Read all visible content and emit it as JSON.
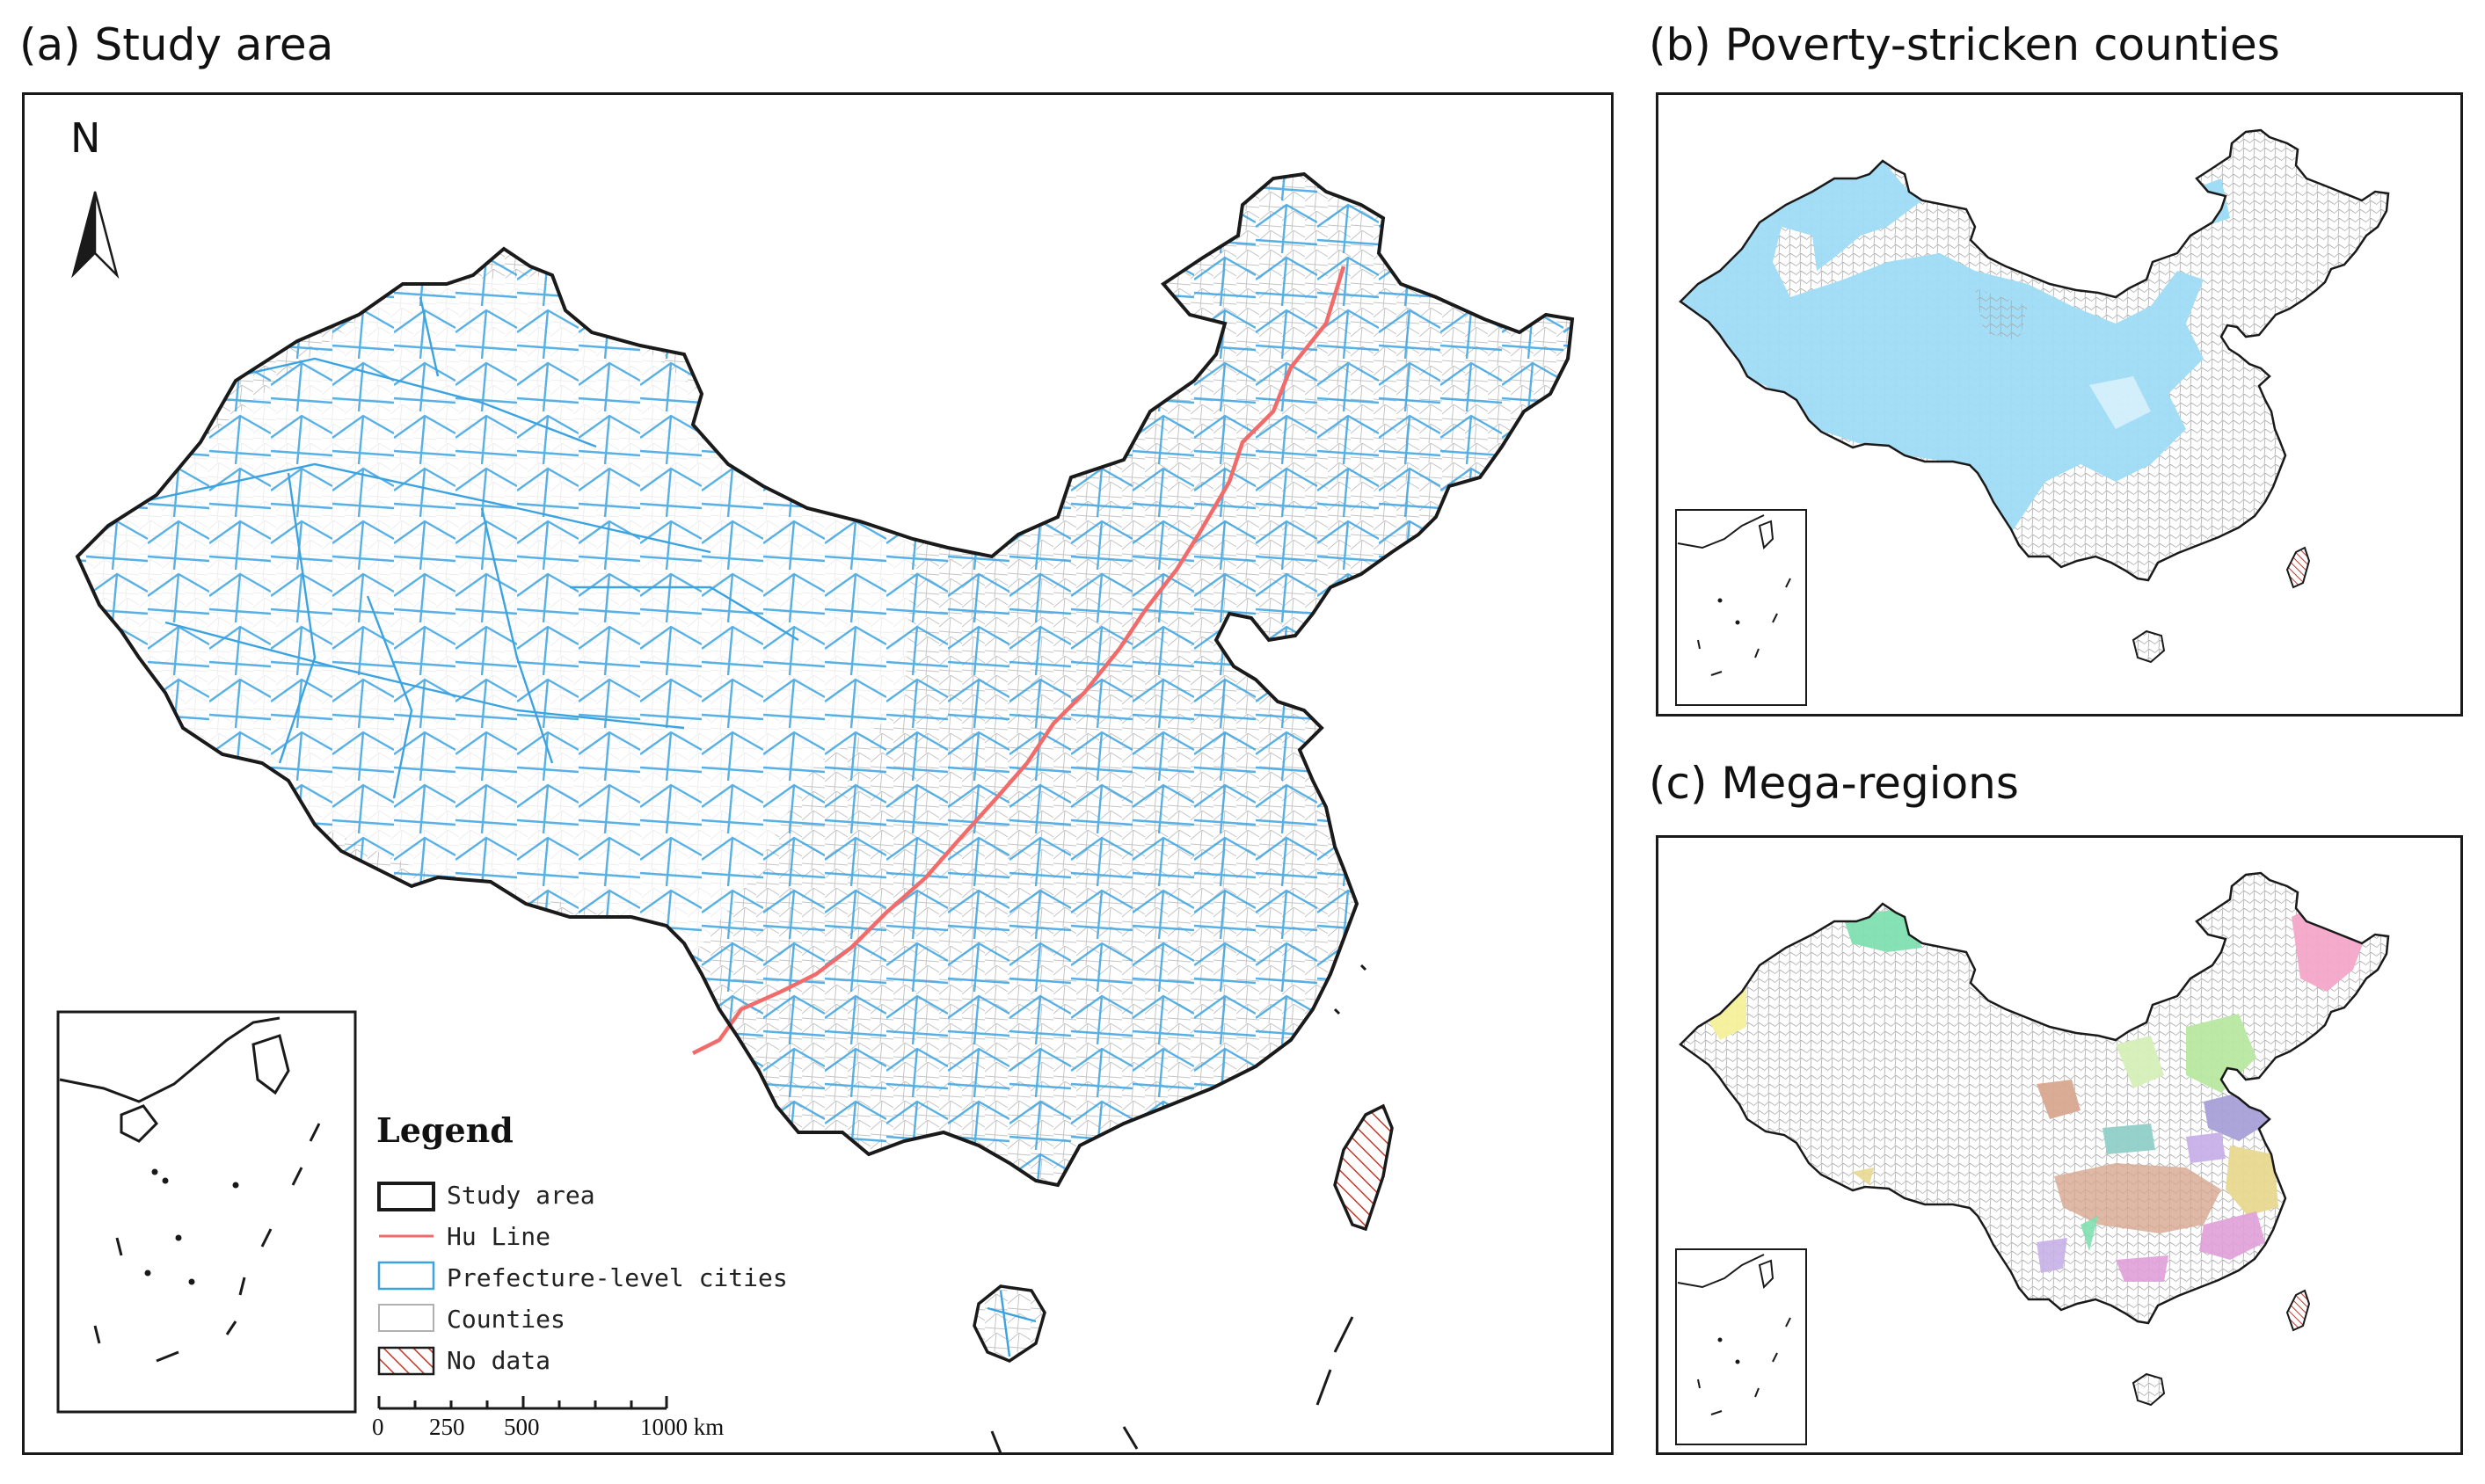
{
  "panels": {
    "a": {
      "title": "(a) Study area"
    },
    "b": {
      "title": "(b) Poverty-stricken counties"
    },
    "c": {
      "title": "(c) Mega-regions"
    }
  },
  "north_arrow": {
    "label": "N"
  },
  "legend": {
    "title": "Legend",
    "items": [
      {
        "label": "Study area",
        "symbol": "study-area-outline",
        "color": "#1a1a1a"
      },
      {
        "label": "Hu Line",
        "symbol": "line",
        "color": "#f26b6b"
      },
      {
        "label": "Prefecture-level cities",
        "symbol": "city-boundary",
        "color": "#3ba3e0"
      },
      {
        "label": "Counties",
        "symbol": "county-boundary",
        "color": "#b0b0b0"
      },
      {
        "label": "No data",
        "symbol": "hatch",
        "color": "#c0392b"
      }
    ]
  },
  "scale_bar": {
    "labels": [
      "0",
      "250",
      "500",
      "1000 km"
    ]
  },
  "colors": {
    "outline": "#1a1a1a",
    "hu_line": "#f26b6b",
    "prefecture": "#3ba3e0",
    "county": "#b0b0b0",
    "poverty": "#9fdcf5",
    "no_data_hatch": "#c0392b",
    "mega_regions": [
      "#7fe0b0",
      "#f4f09a",
      "#f4a6c8",
      "#b8e8a0",
      "#a8a0d8",
      "#d8a890",
      "#90d0c8",
      "#e0a0d8",
      "#c8b0e8",
      "#e8d890"
    ]
  }
}
